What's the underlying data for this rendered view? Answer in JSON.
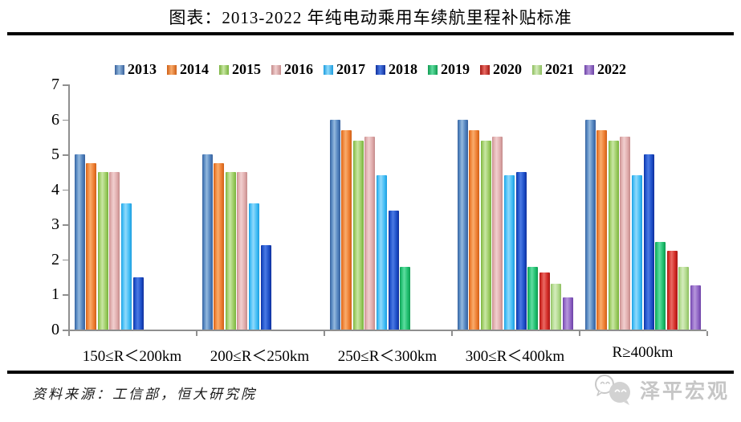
{
  "title": "图表：2013-2022 年纯电动乘用车续航里程补贴标准",
  "source": "资料来源：工信部，恒大研究院",
  "logo_text": "泽平宏观",
  "chart_data": {
    "type": "bar",
    "title": "图表：2013-2022 年纯电动乘用车续航里程补贴标准",
    "xlabel": "",
    "ylabel": "",
    "ylim": [
      0,
      7
    ],
    "ytick_step": 1,
    "grid": false,
    "legend_position": "top",
    "categories": [
      "150≤R＜200km",
      "200≤R＜250km",
      "250≤R＜300km",
      "300≤R＜400km",
      "R≥400km"
    ],
    "series": [
      {
        "name": "2013",
        "values": [
          5,
          5,
          6,
          6,
          6
        ],
        "colors": {
          "base": "#4F81BD",
          "light": "#94B9DE",
          "dark": "#38619C"
        }
      },
      {
        "name": "2014",
        "values": [
          4.75,
          4.75,
          5.7,
          5.7,
          5.7
        ],
        "colors": {
          "base": "#ED7D31",
          "light": "#F9AC6C",
          "dark": "#CE5F16"
        }
      },
      {
        "name": "2015",
        "values": [
          4.5,
          4.5,
          5.4,
          5.4,
          5.4
        ],
        "colors": {
          "base": "#9CCB63",
          "light": "#C9E7A4",
          "dark": "#78B23C"
        }
      },
      {
        "name": "2016",
        "values": [
          4.5,
          4.5,
          5.5,
          5.5,
          5.5
        ],
        "colors": {
          "base": "#DFABAB",
          "light": "#F1CFCF",
          "dark": "#C48A8A"
        }
      },
      {
        "name": "2017",
        "values": [
          3.6,
          3.6,
          4.4,
          4.4,
          4.4
        ],
        "colors": {
          "base": "#41BDF5",
          "light": "#90DAFB",
          "dark": "#1B9CDE"
        }
      },
      {
        "name": "2018",
        "values": [
          1.5,
          2.4,
          3.4,
          4.5,
          5
        ],
        "colors": {
          "base": "#1D4FC8",
          "light": "#4B7AE4",
          "dark": "#0F2F9C"
        }
      },
      {
        "name": "2019",
        "values": [
          0,
          0,
          1.8,
          1.8,
          2.5
        ],
        "colors": {
          "base": "#1FBE6E",
          "light": "#5FDDA0",
          "dark": "#0E9A50"
        }
      },
      {
        "name": "2020",
        "values": [
          0,
          0,
          0,
          1.62,
          2.25
        ],
        "colors": {
          "base": "#D32B26",
          "light": "#EA6B64",
          "dark": "#A31712"
        }
      },
      {
        "name": "2021",
        "values": [
          0,
          0,
          0,
          1.3,
          1.8
        ],
        "colors": {
          "base": "#AFD88A",
          "light": "#D5ECBC",
          "dark": "#8BBD5C"
        }
      },
      {
        "name": "2022",
        "values": [
          0,
          0,
          0,
          0.91,
          1.26
        ],
        "colors": {
          "base": "#8E63C4",
          "light": "#B697DC",
          "dark": "#6C41A6"
        }
      }
    ]
  }
}
